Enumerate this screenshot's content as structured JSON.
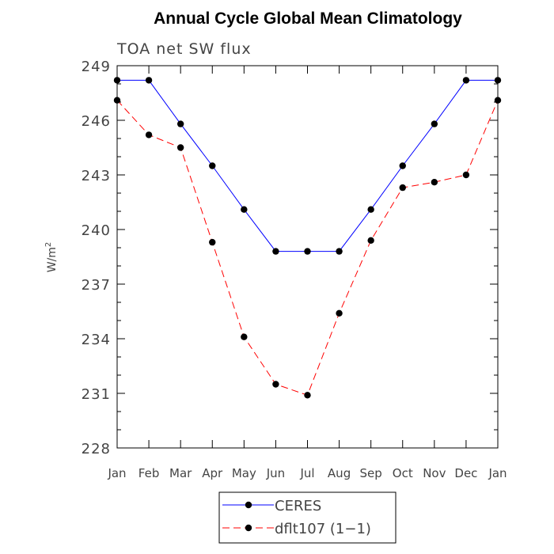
{
  "chart_data": {
    "type": "line",
    "title": "Annual Cycle Global Mean Climatology",
    "subtitle": "TOA net SW flux",
    "xlabel": "",
    "ylabel": "W/m",
    "ylabel_superscript": "2",
    "ylim": [
      228,
      249
    ],
    "yticks": [
      228,
      231,
      234,
      237,
      240,
      243,
      246,
      249
    ],
    "categories": [
      "Jan",
      "Feb",
      "Mar",
      "Apr",
      "May",
      "Jun",
      "Jul",
      "Aug",
      "Sep",
      "Oct",
      "Nov",
      "Dec",
      "Jan"
    ],
    "series": [
      {
        "name": "CERES",
        "color": "#0000ff",
        "dash": "solid",
        "marker": "filled-circle",
        "values": [
          248.2,
          248.2,
          245.8,
          243.5,
          241.1,
          238.8,
          238.8,
          238.8,
          241.1,
          243.5,
          245.8,
          248.2,
          248.2
        ]
      },
      {
        "name": "dflt107 (1−1)",
        "color": "#ff0000",
        "dash": "dashed",
        "marker": "filled-circle",
        "values": [
          247.1,
          245.2,
          244.5,
          239.3,
          234.1,
          231.5,
          230.9,
          235.4,
          239.4,
          242.3,
          242.6,
          243.0,
          247.1
        ]
      }
    ],
    "legend_position": "bottom-center"
  }
}
